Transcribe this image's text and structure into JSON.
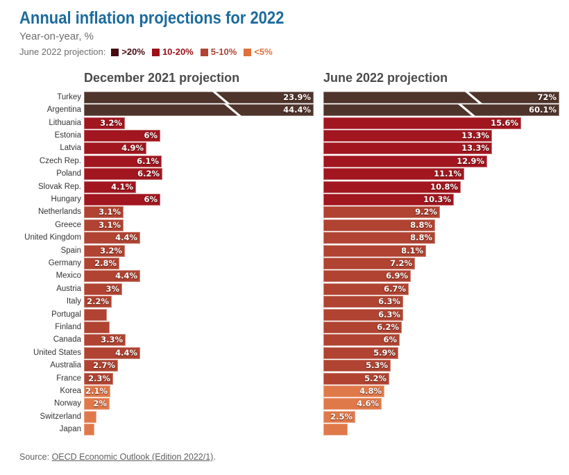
{
  "header": {
    "title": "Annual inflation projections for 2022",
    "subtitle": "Year-on-year, %"
  },
  "legend": {
    "label": "June 2022 projection:",
    "items": [
      {
        "label": ">20%",
        "color": "#470b0e"
      },
      {
        "label": "10-20%",
        "color": "#9c1016"
      },
      {
        "label": "5-10%",
        "color": "#b04331"
      },
      {
        "label": "<5%",
        "color": "#e0703a"
      }
    ]
  },
  "panels": {
    "dec_title": "December 2021 projection",
    "june_title": "June 2022 projection"
  },
  "colors": {
    "gt20": "#4e342b",
    "c10_20": "#a2161f",
    "c5_10": "#b04331",
    "lt5": "#e0794a",
    "title": "#1c6b9d",
    "subtitle": "#6d6d6d",
    "panel_header": "#4b4b4b",
    "country_label": "#333333",
    "source_text": "#5f5f5f"
  },
  "rows": [
    {
      "name": "Turkey",
      "category": "gt20",
      "dec": {
        "value": 23.9,
        "label": "23.9%",
        "break": true,
        "break_at": 0.59
      },
      "june": {
        "value": 72,
        "label": "72%",
        "break": true,
        "break_at": 0.63
      }
    },
    {
      "name": "Argentina",
      "category": "gt20",
      "dec": {
        "value": 44.4,
        "label": "44.4%",
        "break": true,
        "break_at": 0.64
      },
      "june": {
        "value": 60.1,
        "label": "60.1%",
        "break": true,
        "break_at": 0.6
      }
    },
    {
      "name": "Lithuania",
      "category": "c10_20",
      "dec": {
        "value": 3.2,
        "label": "3.2%"
      },
      "june": {
        "value": 15.6,
        "label": "15.6%"
      }
    },
    {
      "name": "Estonia",
      "category": "c10_20",
      "dec": {
        "value": 6,
        "label": "6%"
      },
      "june": {
        "value": 13.3,
        "label": "13.3%"
      }
    },
    {
      "name": "Latvia",
      "category": "c10_20",
      "dec": {
        "value": 4.9,
        "label": "4.9%"
      },
      "june": {
        "value": 13.3,
        "label": "13.3%"
      }
    },
    {
      "name": "Czech Rep.",
      "category": "c10_20",
      "dec": {
        "value": 6.1,
        "label": "6.1%"
      },
      "june": {
        "value": 12.9,
        "label": "12.9%"
      }
    },
    {
      "name": "Poland",
      "category": "c10_20",
      "dec": {
        "value": 6.2,
        "label": "6.2%"
      },
      "june": {
        "value": 11.1,
        "label": "11.1%"
      }
    },
    {
      "name": "Slovak Rep.",
      "category": "c10_20",
      "dec": {
        "value": 4.1,
        "label": "4.1%"
      },
      "june": {
        "value": 10.8,
        "label": "10.8%"
      }
    },
    {
      "name": "Hungary",
      "category": "c10_20",
      "dec": {
        "value": 6,
        "label": "6%"
      },
      "june": {
        "value": 10.3,
        "label": "10.3%"
      }
    },
    {
      "name": "Netherlands",
      "category": "c5_10",
      "dec": {
        "value": 3.1,
        "label": "3.1%"
      },
      "june": {
        "value": 9.2,
        "label": "9.2%"
      }
    },
    {
      "name": "Greece",
      "category": "c5_10",
      "dec": {
        "value": 3.1,
        "label": "3.1%"
      },
      "june": {
        "value": 8.8,
        "label": "8.8%"
      }
    },
    {
      "name": "United Kingdom",
      "category": "c5_10",
      "dec": {
        "value": 4.4,
        "label": "4.4%"
      },
      "june": {
        "value": 8.8,
        "label": "8.8%"
      }
    },
    {
      "name": "Spain",
      "category": "c5_10",
      "dec": {
        "value": 3.2,
        "label": "3.2%"
      },
      "june": {
        "value": 8.1,
        "label": "8.1%"
      }
    },
    {
      "name": "Germany",
      "category": "c5_10",
      "dec": {
        "value": 2.8,
        "label": "2.8%"
      },
      "june": {
        "value": 7.2,
        "label": "7.2%"
      }
    },
    {
      "name": "Mexico",
      "category": "c5_10",
      "dec": {
        "value": 4.4,
        "label": "4.4%"
      },
      "june": {
        "value": 6.9,
        "label": "6.9%"
      }
    },
    {
      "name": "Austria",
      "category": "c5_10",
      "dec": {
        "value": 3,
        "label": "3%"
      },
      "june": {
        "value": 6.7,
        "label": "6.7%"
      }
    },
    {
      "name": "Italy",
      "category": "c5_10",
      "dec": {
        "value": 2.2,
        "label": "2.2%"
      },
      "june": {
        "value": 6.3,
        "label": "6.3%"
      }
    },
    {
      "name": "Portugal",
      "category": "c5_10",
      "dec": {
        "value": 1.8,
        "label": ""
      },
      "june": {
        "value": 6.3,
        "label": "6.3%"
      }
    },
    {
      "name": "Finland",
      "category": "c5_10",
      "dec": {
        "value": 2,
        "label": ""
      },
      "june": {
        "value": 6.2,
        "label": "6.2%"
      }
    },
    {
      "name": "Canada",
      "category": "c5_10",
      "dec": {
        "value": 3.3,
        "label": "3.3%"
      },
      "june": {
        "value": 6,
        "label": "6%"
      }
    },
    {
      "name": "United States",
      "category": "c5_10",
      "dec": {
        "value": 4.4,
        "label": "4.4%"
      },
      "june": {
        "value": 5.9,
        "label": "5.9%"
      }
    },
    {
      "name": "Australia",
      "category": "c5_10",
      "dec": {
        "value": 2.7,
        "label": "2.7%"
      },
      "june": {
        "value": 5.3,
        "label": "5.3%"
      }
    },
    {
      "name": "France",
      "category": "c5_10",
      "dec": {
        "value": 2.3,
        "label": "2.3%"
      },
      "june": {
        "value": 5.2,
        "label": "5.2%"
      }
    },
    {
      "name": "Korea",
      "category": "lt5",
      "dec": {
        "value": 2.1,
        "label": "2.1%"
      },
      "june": {
        "value": 4.8,
        "label": "4.8%"
      }
    },
    {
      "name": "Norway",
      "category": "lt5",
      "dec": {
        "value": 2,
        "label": "2%"
      },
      "june": {
        "value": 4.6,
        "label": "4.6%"
      }
    },
    {
      "name": "Switzerland",
      "category": "lt5",
      "dec": {
        "value": 1,
        "label": ""
      },
      "june": {
        "value": 2.5,
        "label": "2.5%"
      }
    },
    {
      "name": "Japan",
      "category": "lt5",
      "dec": {
        "value": 0.8,
        "label": ""
      },
      "june": {
        "value": 1.9,
        "label": ""
      }
    }
  ],
  "source": {
    "prefix": "Source: ",
    "link_text": "OECD Economic Outlook (Edition 2022/1)",
    "suffix": "."
  },
  "chart_data": {
    "type": "bar",
    "orientation": "horizontal",
    "title": "Annual inflation projections for 2022",
    "subtitle": "Year-on-year, %",
    "unit": "% year-on-year",
    "panels": [
      "December 2021 projection",
      "June 2022 projection"
    ],
    "categories": [
      "Turkey",
      "Argentina",
      "Lithuania",
      "Estonia",
      "Latvia",
      "Czech Rep.",
      "Poland",
      "Slovak Rep.",
      "Hungary",
      "Netherlands",
      "Greece",
      "United Kingdom",
      "Spain",
      "Germany",
      "Mexico",
      "Austria",
      "Italy",
      "Portugal",
      "Finland",
      "Canada",
      "United States",
      "Australia",
      "France",
      "Korea",
      "Norway",
      "Switzerland",
      "Japan"
    ],
    "series": [
      {
        "name": "December 2021 projection",
        "values": [
          23.9,
          44.4,
          3.2,
          6,
          4.9,
          6.1,
          6.2,
          4.1,
          6,
          3.1,
          3.1,
          4.4,
          3.2,
          2.8,
          4.4,
          3,
          2.2,
          1.8,
          2,
          3.3,
          4.4,
          2.7,
          2.3,
          2.1,
          2,
          1,
          0.8
        ]
      },
      {
        "name": "June 2022 projection",
        "values": [
          72,
          60.1,
          15.6,
          13.3,
          13.3,
          12.9,
          11.1,
          10.8,
          10.3,
          9.2,
          8.8,
          8.8,
          8.1,
          7.2,
          6.9,
          6.7,
          6.3,
          6.3,
          6.2,
          6,
          5.9,
          5.3,
          5.2,
          4.8,
          4.6,
          2.5,
          1.9
        ]
      }
    ],
    "color_coding": {
      "legend_title": "June 2022 projection:",
      "bands": [
        {
          "range": ">20%",
          "color": "#4e342b"
        },
        {
          "range": "10-20%",
          "color": "#a2161f"
        },
        {
          "range": "5-10%",
          "color": "#b04331"
        },
        {
          "range": "<5%",
          "color": "#e0794a"
        }
      ]
    },
    "x_axis": {
      "truncated_above": 18.6,
      "truncation_marks": [
        "Turkey",
        "Argentina"
      ],
      "grid": false
    },
    "notes": "Rows sorted by June 2022 value descending; December bars for Portugal, Finland, Switzerland, Japan and June bar for Japan carry no printed label (values estimated from bar length)."
  }
}
